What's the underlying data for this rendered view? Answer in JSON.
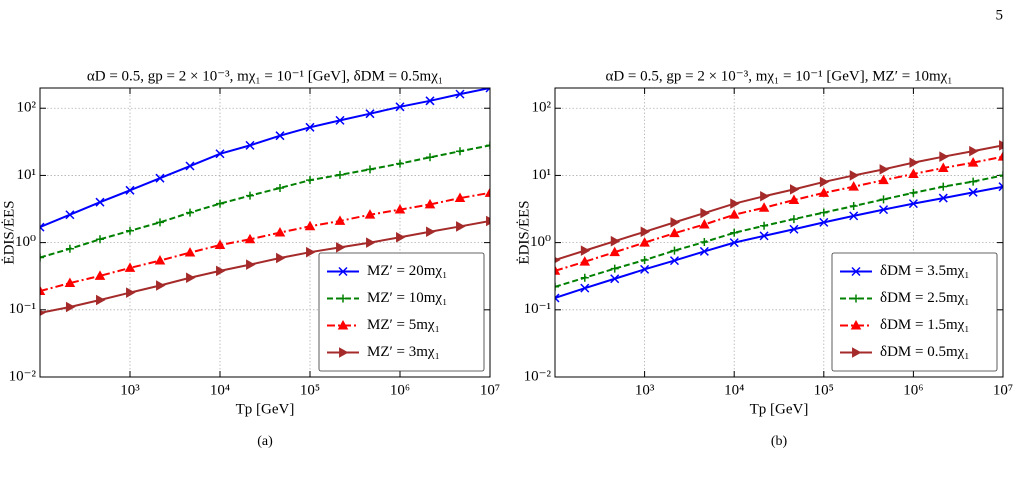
{
  "page_number": 5,
  "chart_data": [
    {
      "type": "line",
      "title": "αD = 0.5, gp = 2 × 10⁻³, mχ₁ = 10⁻¹ [GeV], δDM = 0.5mχ₁",
      "caption": "(a)",
      "xlabel": "Tp [GeV]",
      "ylabel": "ĖDIS/ĖES",
      "xscale": "log",
      "yscale": "log",
      "grid": true,
      "legend": "lower right",
      "xlim": [
        100,
        10000000
      ],
      "ylim": [
        0.01,
        200
      ],
      "xticks": [
        {
          "value": 1000,
          "label": "10³"
        },
        {
          "value": 10000,
          "label": "10⁴"
        },
        {
          "value": 100000,
          "label": "10⁵"
        },
        {
          "value": 1000000,
          "label": "10⁶"
        },
        {
          "value": 10000000,
          "label": "10⁷"
        }
      ],
      "yticks": [
        {
          "value": 0.01,
          "label": "10⁻²"
        },
        {
          "value": 0.1,
          "label": "10⁻¹"
        },
        {
          "value": 1,
          "label": "10⁰"
        },
        {
          "value": 10,
          "label": "10¹"
        },
        {
          "value": 100,
          "label": "10²"
        }
      ],
      "x": [
        100,
        215,
        464,
        1000,
        2154,
        4642,
        10000,
        21544,
        46416,
        100000,
        215443,
        464159,
        1000000,
        2154435,
        4641589,
        10000000
      ],
      "series": [
        {
          "name": "MZ′ = 20mχ₁",
          "color": "#0000ff",
          "dash": "solid",
          "marker": "x",
          "values": [
            1.7,
            2.6,
            4,
            6,
            9.1,
            13.8,
            21,
            28,
            39,
            52,
            66,
            83,
            105,
            129,
            162,
            200
          ]
        },
        {
          "name": "MZ′ = 10mχ₁",
          "color": "#008000",
          "dash": "dashed",
          "marker": "+",
          "values": [
            0.6,
            0.81,
            1.12,
            1.5,
            2,
            2.8,
            3.8,
            5,
            6.5,
            8.5,
            10.2,
            12.3,
            15,
            18.6,
            22.9,
            28
          ]
        },
        {
          "name": "MZ′ = 5mχ₁",
          "color": "#ff0000",
          "dash": "dashdot",
          "marker": "^",
          "values": [
            0.19,
            0.25,
            0.32,
            0.42,
            0.54,
            0.71,
            0.92,
            1.12,
            1.41,
            1.75,
            2.1,
            2.6,
            3.1,
            3.7,
            4.6,
            5.5
          ]
        },
        {
          "name": "MZ′ = 3mχ₁",
          "color": "#a52a2a",
          "dash": "solid",
          "marker": ">",
          "values": [
            0.09,
            0.11,
            0.14,
            0.18,
            0.23,
            0.3,
            0.38,
            0.47,
            0.59,
            0.72,
            0.85,
            1.0,
            1.2,
            1.45,
            1.74,
            2.1
          ]
        }
      ]
    },
    {
      "type": "line",
      "title": "αD = 0.5, gp = 2 × 10⁻³, mχ₁ = 10⁻¹ [GeV], MZ′ = 10mχ₁",
      "caption": "(b)",
      "xlabel": "Tp [GeV]",
      "ylabel": "ĖDIS/ĖES",
      "xscale": "log",
      "yscale": "log",
      "grid": true,
      "legend": "lower right",
      "xlim": [
        100,
        10000000
      ],
      "ylim": [
        0.01,
        200
      ],
      "xticks": [
        {
          "value": 1000,
          "label": "10³"
        },
        {
          "value": 10000,
          "label": "10⁴"
        },
        {
          "value": 100000,
          "label": "10⁵"
        },
        {
          "value": 1000000,
          "label": "10⁶"
        },
        {
          "value": 10000000,
          "label": "10⁷"
        }
      ],
      "yticks": [
        {
          "value": 0.01,
          "label": "10⁻²"
        },
        {
          "value": 0.1,
          "label": "10⁻¹"
        },
        {
          "value": 1,
          "label": "10⁰"
        },
        {
          "value": 10,
          "label": "10¹"
        },
        {
          "value": 100,
          "label": "10²"
        }
      ],
      "x": [
        100,
        215,
        464,
        1000,
        2154,
        4642,
        10000,
        21544,
        46416,
        100000,
        215443,
        464159,
        1000000,
        2154435,
        4641589,
        10000000
      ],
      "series": [
        {
          "name": "δDM = 3.5mχ₁",
          "color": "#0000ff",
          "dash": "solid",
          "marker": "x",
          "values": [
            0.15,
            0.21,
            0.29,
            0.4,
            0.54,
            0.74,
            1.0,
            1.26,
            1.58,
            2.0,
            2.5,
            3.1,
            3.8,
            4.6,
            5.6,
            6.8
          ]
        },
        {
          "name": "δDM = 2.5mχ₁",
          "color": "#008000",
          "dash": "dashed",
          "marker": "+",
          "values": [
            0.22,
            0.3,
            0.41,
            0.55,
            0.76,
            1.02,
            1.4,
            1.78,
            2.24,
            2.8,
            3.5,
            4.4,
            5.5,
            6.8,
            8.1,
            10
          ]
        },
        {
          "name": "δDM = 1.5mχ₁",
          "color": "#ff0000",
          "dash": "dashdot",
          "marker": "^",
          "values": [
            0.38,
            0.52,
            0.72,
            1.0,
            1.38,
            1.86,
            2.6,
            3.3,
            4.3,
            5.5,
            6.8,
            8.5,
            10.5,
            12.9,
            15.5,
            19
          ]
        },
        {
          "name": "δDM = 0.5mχ₁",
          "color": "#a52a2a",
          "dash": "solid",
          "marker": ">",
          "values": [
            0.55,
            0.76,
            1.05,
            1.45,
            2,
            2.75,
            3.8,
            4.9,
            6.2,
            8,
            10,
            12.3,
            15.5,
            19,
            23,
            28
          ]
        }
      ]
    }
  ]
}
